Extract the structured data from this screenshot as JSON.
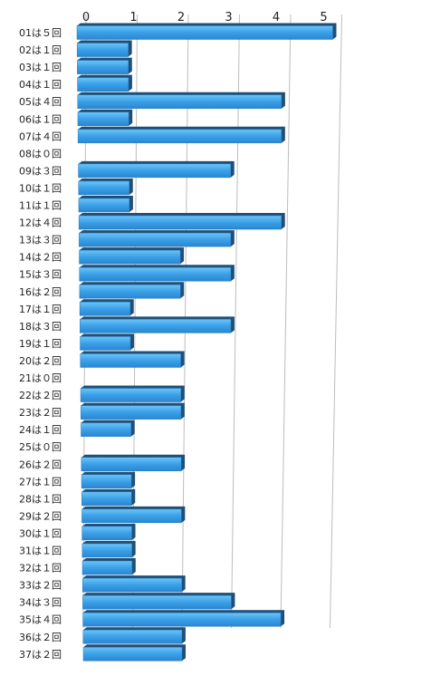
{
  "chart_data": {
    "type": "bar",
    "orientation": "horizontal",
    "categories": [
      "01は５回",
      "02は１回",
      "03は１回",
      "04は１回",
      "05は４回",
      "06は１回",
      "07は４回",
      "08は０回",
      "09は３回",
      "10は１回",
      "11は１回",
      "12は４回",
      "13は３回",
      "14は２回",
      "15は３回",
      "16は２回",
      "17は１回",
      "18は３回",
      "19は１回",
      "20は２回",
      "21は０回",
      "22は２回",
      "23は２回",
      "24は１回",
      "25は０回",
      "26は２回",
      "27は１回",
      "28は１回",
      "29は２回",
      "30は１回",
      "31は１回",
      "32は１回",
      "33は２回",
      "34は３回",
      "35は４回",
      "36は２回",
      "37は２回"
    ],
    "values": [
      5,
      1,
      1,
      1,
      4,
      1,
      4,
      0,
      3,
      1,
      1,
      4,
      3,
      2,
      3,
      2,
      1,
      3,
      1,
      2,
      0,
      2,
      2,
      1,
      0,
      2,
      1,
      1,
      2,
      1,
      1,
      1,
      2,
      3,
      4,
      2,
      2
    ],
    "xticks": [
      "0",
      "1",
      "2",
      "3",
      "4",
      "5"
    ],
    "xlim": [
      0,
      5
    ],
    "grid": true,
    "bar_color": "#3aa0e8"
  }
}
